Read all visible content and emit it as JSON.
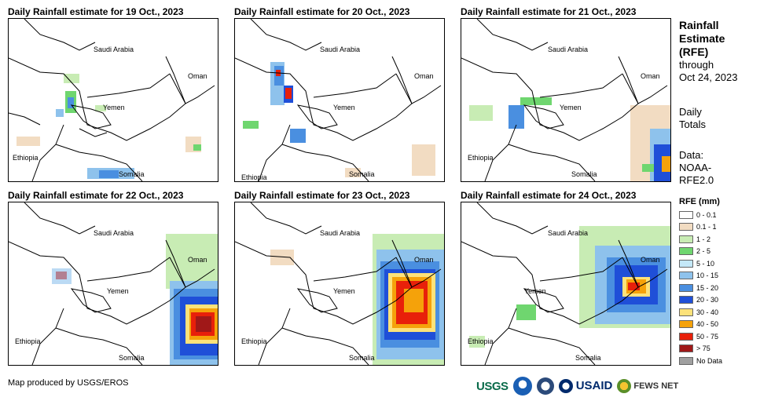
{
  "panels": [
    {
      "title": "Daily Rainfall estimate for 19 Oct., 2023",
      "date": "19 Oct., 2023"
    },
    {
      "title": "Daily Rainfall estimate for 20 Oct., 2023",
      "date": "20 Oct., 2023"
    },
    {
      "title": "Daily Rainfall estimate for 21 Oct., 2023",
      "date": "21 Oct., 2023"
    },
    {
      "title": "Daily Rainfall estimate for 22 Oct., 2023",
      "date": "22 Oct., 2023"
    },
    {
      "title": "Daily Rainfall estimate for 23 Oct., 2023",
      "date": "23 Oct., 2023"
    },
    {
      "title": "Daily Rainfall estimate for 24 Oct., 2023",
      "date": "24 Oct., 2023"
    }
  ],
  "map_labels": {
    "saudi": "Saudi Arabia",
    "oman": "Oman",
    "yemen": "Yemen",
    "ethiopia": "Ethiopia",
    "somalia": "Somalia"
  },
  "sidebar": {
    "title_line1": "Rainfall",
    "title_line2": "Estimate",
    "title_line3": "(RFE)",
    "through": "through",
    "through_date": "Oct 24, 2023",
    "daily": "Daily",
    "totals": "Totals",
    "data_label": "Data:",
    "source1": "NOAA-",
    "source2": "RFE2.0"
  },
  "legend": {
    "title": "RFE (mm)",
    "items": [
      {
        "label": "0 - 0.1",
        "color": "#ffffff"
      },
      {
        "label": "0.1 - 1",
        "color": "#f2dcc2"
      },
      {
        "label": "1 - 2",
        "color": "#c8ecb4"
      },
      {
        "label": "2 - 5",
        "color": "#6fd66f"
      },
      {
        "label": "5 - 10",
        "color": "#c4e8f8"
      },
      {
        "label": "10 - 15",
        "color": "#8ec2ec"
      },
      {
        "label": "15 - 20",
        "color": "#4a8fe0"
      },
      {
        "label": "20 - 30",
        "color": "#1f4fd8"
      },
      {
        "label": "30 - 40",
        "color": "#fce27a"
      },
      {
        "label": "40 - 50",
        "color": "#f5a20a"
      },
      {
        "label": "50 - 75",
        "color": "#e8200a"
      },
      {
        "label": "> 75",
        "color": "#a01818"
      },
      {
        "label": "No Data",
        "color": "#a0a0a0"
      }
    ]
  },
  "credit": "Map produced by USGS/EROS",
  "logos": {
    "usgs": "USGS",
    "usaid": "USAID",
    "fews": "FEWS NET"
  }
}
